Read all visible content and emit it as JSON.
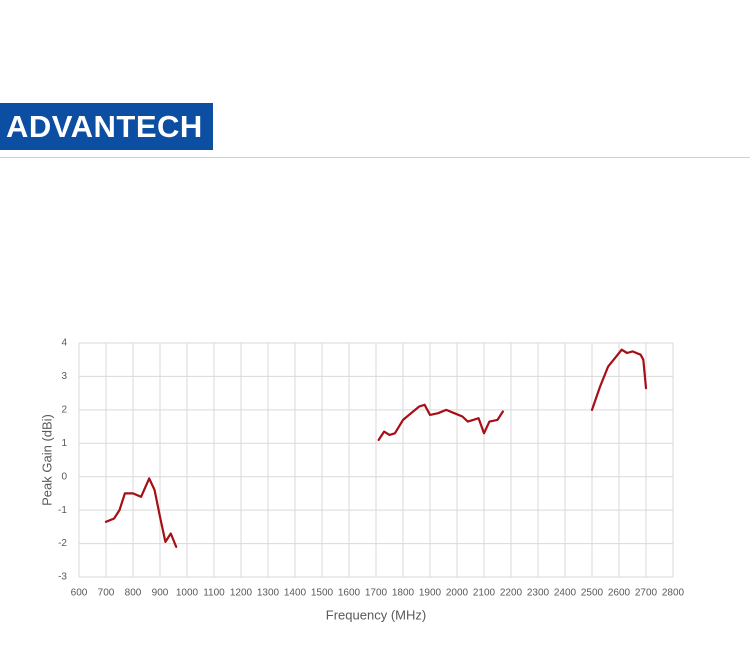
{
  "header": {
    "logo": "ADVANTECH"
  },
  "chart_data": {
    "type": "line",
    "x_label": "Frequency (MHz)",
    "y_label": "Peak Gain (dBi)",
    "x": [
      700,
      730,
      750,
      770,
      800,
      830,
      860,
      880,
      900,
      920,
      940,
      960,
      null,
      1710,
      1730,
      1750,
      1770,
      1800,
      1830,
      1860,
      1880,
      1900,
      1930,
      1960,
      1990,
      2020,
      2040,
      2060,
      2080,
      2100,
      2120,
      2150,
      2170,
      null,
      2500,
      2530,
      2560,
      2590,
      2610,
      2630,
      2650,
      2680,
      2690,
      2700
    ],
    "series": [
      {
        "color": "#a50f15",
        "values": [
          -1.35,
          -1.25,
          -1.0,
          -0.5,
          -0.5,
          -0.6,
          -0.05,
          -0.4,
          -1.2,
          -1.95,
          -1.7,
          -2.1,
          null,
          1.1,
          1.35,
          1.25,
          1.3,
          1.7,
          1.9,
          2.1,
          2.15,
          1.85,
          1.9,
          2.0,
          1.9,
          1.8,
          1.65,
          1.7,
          1.75,
          1.3,
          1.65,
          1.7,
          1.95,
          null,
          2.0,
          2.7,
          3.3,
          3.6,
          3.8,
          3.7,
          3.75,
          3.65,
          3.5,
          2.65
        ]
      }
    ],
    "xlim": [
      600,
      2800
    ],
    "ylim": [
      -3,
      4
    ],
    "xticks": [
      600,
      700,
      800,
      900,
      1000,
      1100,
      1200,
      1300,
      1400,
      1500,
      1600,
      1700,
      1800,
      1900,
      2000,
      2100,
      2200,
      2300,
      2400,
      2500,
      2600,
      2700,
      2800
    ],
    "yticks": [
      -3,
      -2,
      -1,
      0,
      1,
      2,
      3,
      4
    ],
    "grid": true
  }
}
